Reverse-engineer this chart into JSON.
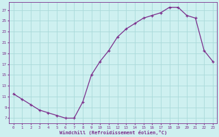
{
  "x": [
    0,
    1,
    2,
    3,
    4,
    5,
    6,
    7,
    8,
    9,
    10,
    11,
    12,
    13,
    14,
    15,
    16,
    17,
    18,
    19,
    20,
    21,
    22,
    23
  ],
  "y": [
    11.5,
    10.5,
    9.5,
    8.5,
    8.0,
    7.5,
    7.0,
    7.0,
    10.0,
    15.0,
    17.5,
    19.5,
    22.0,
    23.5,
    24.5,
    25.5,
    26.0,
    26.5,
    27.5,
    27.5,
    26.0,
    25.5,
    19.5,
    17.5
  ],
  "line_color": "#7b2d8b",
  "marker": "+",
  "bg_color": "#cef0f0",
  "grid_color": "#aadada",
  "xlabel": "Windchill (Refroidissement éolien,°C)",
  "yticks": [
    7,
    9,
    11,
    13,
    15,
    17,
    19,
    21,
    23,
    25,
    27
  ],
  "ylim": [
    6.0,
    28.5
  ],
  "xlim": [
    -0.5,
    23.5
  ],
  "xticks": [
    0,
    1,
    2,
    3,
    4,
    5,
    6,
    7,
    8,
    9,
    10,
    11,
    12,
    13,
    14,
    15,
    16,
    17,
    18,
    19,
    20,
    21,
    22,
    23
  ]
}
